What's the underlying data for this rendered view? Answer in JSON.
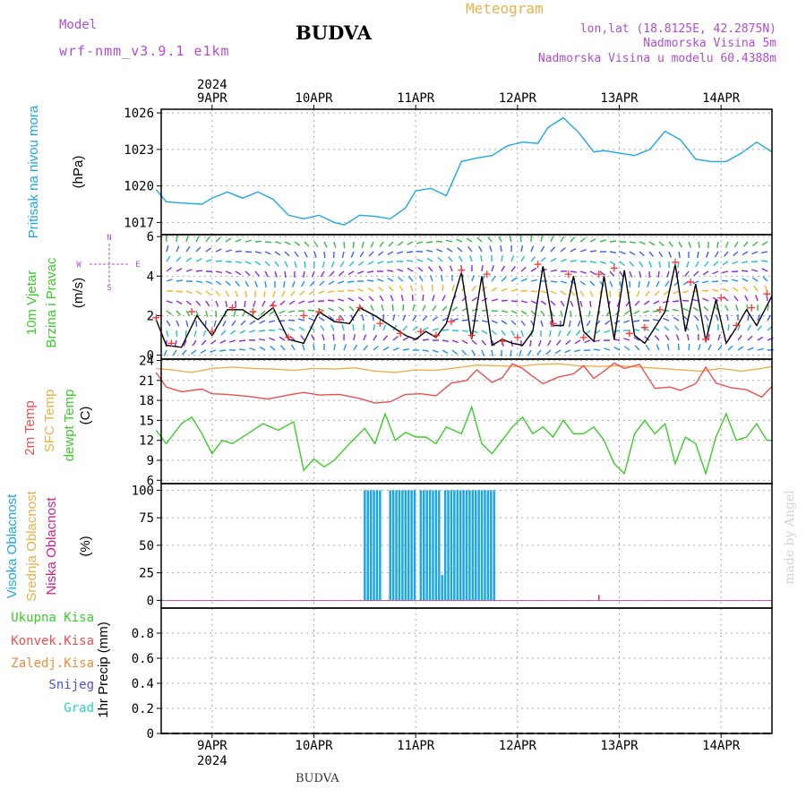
{
  "header": {
    "model_label": "Model",
    "model_name": "wrf-nmm_v3.9.1 e1km",
    "station": "BUDVA",
    "chart_title": "Meteogram",
    "location_line": "lon,lat (18.8125E, 42.2875N)",
    "altitude_line": "Nadmorska Visina 5m",
    "model_altitude_line": "Nadmorska Visina u modelu 60.4388m",
    "footer_station": "BUDVA",
    "credit": "made by Angel"
  },
  "colors": {
    "pressure": "#1ea7e6",
    "temp2m": "#e8504f",
    "sfc_temp": "#e8b14a",
    "dewpoint": "#3ccc2a",
    "high_cloud": "#1ea7e6",
    "low_cloud": "#d0208a",
    "wind_speed": "#000000",
    "gust_marker": "#ff3333",
    "title_purple": "#b04cd6",
    "precip_total": "#3ccc2a",
    "precip_conv": "#e8504f",
    "precip_frozen": "#f08a3c",
    "precip_snow": "#4f4fe0",
    "precip_graupel": "#2ad0c0"
  },
  "chart_data": {
    "type": "line",
    "x_axis": {
      "year_label": "2024",
      "ticks": [
        "9APR",
        "10APR",
        "11APR",
        "12APR",
        "13APR",
        "14APR"
      ]
    },
    "panels": [
      {
        "id": "pressure",
        "type": "line",
        "labels": [
          "Pritisak na nivou mora"
        ],
        "unit": "(hPa)",
        "ylim": [
          1016,
          1026.3
        ],
        "yticks": [
          1017,
          1020,
          1023,
          1026
        ],
        "grid": true,
        "series": [
          {
            "color_key": "pressure",
            "x": [
              8.45,
              8.55,
              8.7,
              8.9,
              9.0,
              9.15,
              9.3,
              9.45,
              9.6,
              9.75,
              9.9,
              10.05,
              10.2,
              10.3,
              10.45,
              10.6,
              10.75,
              10.9,
              11.0,
              11.15,
              11.3,
              11.45,
              11.6,
              11.75,
              11.9,
              12.05,
              12.2,
              12.3,
              12.45,
              12.6,
              12.75,
              12.85,
              13.0,
              13.15,
              13.3,
              13.45,
              13.6,
              13.75,
              13.9,
              14.05,
              14.2,
              14.35,
              14.5
            ],
            "values": [
              1019.7,
              1018.7,
              1018.6,
              1018.5,
              1019.0,
              1019.5,
              1019.0,
              1019.5,
              1018.9,
              1017.6,
              1017.3,
              1017.6,
              1017.0,
              1016.8,
              1017.6,
              1017.5,
              1017.3,
              1018.2,
              1019.6,
              1019.8,
              1019.2,
              1022.0,
              1022.3,
              1022.5,
              1023.3,
              1023.6,
              1023.5,
              1024.8,
              1025.6,
              1024.4,
              1022.8,
              1022.9,
              1022.7,
              1022.5,
              1023.0,
              1024.5,
              1023.8,
              1022.2,
              1022.0,
              1022.0,
              1022.7,
              1023.6,
              1022.8
            ]
          }
        ]
      },
      {
        "id": "wind",
        "type": "line",
        "labels": [
          "10m Vjetar",
          "Brzina i Pravac"
        ],
        "unit": "(m/s)",
        "ylim": [
          -0.2,
          6.1
        ],
        "yticks": [
          0,
          2,
          4,
          6
        ],
        "grid": true,
        "compass": [
          "N",
          "W",
          "E",
          "S"
        ],
        "series": [
          {
            "color_key": "wind_speed",
            "x": [
              8.45,
              8.55,
              8.7,
              8.85,
              9.0,
              9.15,
              9.3,
              9.45,
              9.6,
              9.75,
              9.9,
              10.05,
              10.2,
              10.35,
              10.45,
              10.6,
              10.75,
              10.9,
              11.0,
              11.1,
              11.2,
              11.3,
              11.45,
              11.55,
              11.65,
              11.75,
              11.85,
              11.95,
              12.05,
              12.15,
              12.25,
              12.35,
              12.45,
              12.55,
              12.65,
              12.75,
              12.85,
              12.95,
              13.05,
              13.15,
              13.25,
              13.35,
              13.45,
              13.55,
              13.65,
              13.75,
              13.85,
              13.95,
              14.05,
              14.15,
              14.25,
              14.35,
              14.5
            ],
            "values": [
              1.8,
              0.5,
              0.4,
              2.0,
              1.0,
              2.3,
              2.3,
              1.8,
              2.4,
              0.8,
              0.6,
              2.2,
              1.7,
              1.6,
              2.4,
              2.0,
              1.5,
              1.0,
              0.8,
              1.2,
              0.9,
              1.6,
              4.2,
              0.8,
              4.0,
              0.5,
              0.8,
              0.6,
              0.5,
              1.2,
              4.5,
              1.5,
              1.5,
              4.0,
              1.2,
              0.7,
              4.0,
              0.8,
              4.3,
              1.0,
              0.6,
              1.4,
              2.2,
              4.6,
              1.2,
              3.6,
              0.7,
              2.8,
              0.6,
              1.4,
              2.3,
              1.5,
              3.0
            ]
          },
          {
            "color_key": "gust_marker",
            "marker": "plus",
            "x": [
              8.45,
              8.6,
              8.8,
              9.0,
              9.2,
              9.4,
              9.6,
              9.75,
              9.9,
              10.05,
              10.25,
              10.45,
              10.65,
              10.85,
              11.05,
              11.2,
              11.35,
              11.45,
              11.55,
              11.7,
              11.85,
              12.0,
              12.2,
              12.35,
              12.5,
              12.65,
              12.8,
              12.95,
              13.1,
              13.25,
              13.4,
              13.55,
              13.7,
              13.85,
              14.0,
              14.15,
              14.3,
              14.45
            ],
            "values": [
              1.9,
              0.6,
              2.2,
              1.2,
              2.4,
              2.2,
              2.5,
              0.9,
              2.0,
              2.2,
              1.8,
              2.4,
              1.6,
              1.1,
              1.2,
              1.0,
              1.7,
              4.3,
              1.0,
              4.1,
              0.7,
              0.9,
              4.6,
              1.6,
              4.1,
              0.9,
              4.1,
              4.4,
              1.1,
              1.4,
              2.3,
              4.7,
              3.7,
              0.8,
              2.9,
              1.5,
              2.4,
              3.1
            ]
          }
        ]
      },
      {
        "id": "temperature",
        "type": "line",
        "labels": [
          "2m Temp",
          "SFC Temp",
          "dewpt Temp"
        ],
        "label_color_keys": [
          "temp2m",
          "sfc_temp",
          "dewpoint"
        ],
        "unit": "(C)",
        "ylim": [
          5.5,
          24.2
        ],
        "yticks": [
          6,
          9,
          12,
          15,
          18,
          21,
          24
        ],
        "grid": true,
        "series": [
          {
            "color_key": "sfc_temp",
            "x": [
              8.45,
              8.6,
              8.8,
              9.0,
              9.2,
              9.4,
              9.6,
              9.8,
              10.0,
              10.2,
              10.4,
              10.6,
              10.8,
              11.0,
              11.2,
              11.4,
              11.6,
              11.8,
              12.0,
              12.2,
              12.4,
              12.6,
              12.8,
              13.0,
              13.2,
              13.4,
              13.6,
              13.8,
              14.0,
              14.2,
              14.4,
              14.5
            ],
            "values": [
              22.8,
              22.6,
              22.2,
              22.8,
              23.0,
              22.8,
              22.7,
              22.5,
              22.8,
              22.7,
              22.9,
              22.4,
              22.2,
              22.6,
              22.5,
              22.9,
              23.3,
              23.2,
              23.1,
              23.4,
              23.5,
              23.2,
              23.1,
              23.2,
              23.0,
              22.8,
              22.6,
              22.4,
              22.8,
              22.4,
              22.8,
              23.1
            ]
          },
          {
            "color_key": "temp2m",
            "x": [
              8.45,
              8.55,
              8.7,
              8.9,
              9.0,
              9.15,
              9.35,
              9.55,
              9.75,
              9.9,
              10.05,
              10.25,
              10.45,
              10.6,
              10.75,
              10.9,
              11.05,
              11.2,
              11.35,
              11.5,
              11.6,
              11.75,
              11.85,
              11.95,
              12.05,
              12.15,
              12.25,
              12.4,
              12.55,
              12.65,
              12.75,
              12.85,
              12.95,
              13.05,
              13.2,
              13.35,
              13.5,
              13.6,
              13.75,
              13.85,
              13.95,
              14.1,
              14.25,
              14.4,
              14.5
            ],
            "values": [
              22.2,
              20.0,
              19.3,
              19.7,
              19.0,
              18.9,
              18.6,
              18.2,
              18.8,
              19.2,
              18.8,
              18.9,
              18.3,
              17.6,
              17.8,
              18.9,
              19.0,
              18.7,
              20.6,
              21.0,
              22.6,
              20.7,
              21.4,
              23.5,
              22.8,
              21.6,
              20.5,
              21.5,
              22.0,
              23.2,
              21.3,
              22.4,
              23.6,
              22.8,
              23.4,
              19.8,
              20.0,
              19.5,
              20.5,
              23.0,
              20.6,
              19.9,
              19.6,
              18.5,
              20.1
            ]
          },
          {
            "color_key": "dewpoint",
            "x": [
              8.45,
              8.55,
              8.7,
              8.8,
              8.9,
              9.0,
              9.1,
              9.2,
              9.35,
              9.5,
              9.65,
              9.8,
              9.9,
              10.0,
              10.1,
              10.2,
              10.35,
              10.5,
              10.6,
              10.7,
              10.8,
              10.9,
              11.0,
              11.1,
              11.2,
              11.3,
              11.45,
              11.55,
              11.65,
              11.75,
              11.85,
              11.95,
              12.05,
              12.15,
              12.25,
              12.35,
              12.45,
              12.55,
              12.65,
              12.75,
              12.85,
              12.95,
              13.05,
              13.15,
              13.25,
              13.35,
              13.45,
              13.55,
              13.65,
              13.75,
              13.85,
              13.95,
              14.05,
              14.15,
              14.25,
              14.35,
              14.45,
              14.5
            ],
            "values": [
              13.5,
              11.5,
              14.5,
              15.5,
              13.0,
              10.0,
              12.0,
              11.5,
              13.0,
              14.5,
              13.5,
              14.8,
              7.5,
              9.2,
              8.0,
              9.0,
              11.5,
              13.8,
              11.5,
              16.0,
              12.0,
              13.2,
              12.5,
              12.5,
              11.5,
              14.0,
              13.0,
              17.0,
              11.5,
              10.0,
              12.0,
              14.0,
              15.5,
              13.0,
              14.0,
              12.5,
              15.0,
              13.0,
              13.0,
              14.0,
              12.0,
              8.5,
              7.0,
              13.0,
              15.0,
              13.0,
              14.5,
              8.5,
              12.5,
              11.5,
              7.0,
              12.5,
              16.0,
              12.0,
              12.5,
              14.5,
              12.0,
              12.0
            ]
          }
        ]
      },
      {
        "id": "clouds",
        "type": "bar",
        "labels": [
          "Visoka Oblacnost",
          "Srednja Oblacnost",
          "Niska Oblacnost"
        ],
        "label_color_keys": [
          "high_cloud",
          "sfc_temp",
          "low_cloud"
        ],
        "unit": "(%)",
        "ylim": [
          -7,
          106
        ],
        "yticks": [
          0,
          25,
          50,
          75,
          100
        ],
        "grid": true,
        "series": [
          {
            "name": "Visoka Oblacnost",
            "color_key": "high_cloud",
            "bar_width": 0.022,
            "x": [
              10.5,
              10.53,
              10.56,
              10.59,
              10.62,
              10.65,
              10.75,
              10.78,
              10.81,
              10.84,
              10.87,
              10.9,
              10.93,
              10.96,
              10.99,
              11.05,
              11.08,
              11.11,
              11.14,
              11.17,
              11.2,
              11.23,
              11.26,
              11.29,
              11.32,
              11.35,
              11.38,
              11.41,
              11.44,
              11.47,
              11.5,
              11.53,
              11.56,
              11.59,
              11.62,
              11.65,
              11.68,
              11.71,
              11.74,
              11.77
            ],
            "values": [
              100,
              100,
              100,
              100,
              100,
              100,
              100,
              100,
              100,
              100,
              100,
              100,
              100,
              100,
              100,
              100,
              100,
              100,
              100,
              100,
              100,
              100,
              23,
              100,
              100,
              100,
              100,
              100,
              100,
              100,
              100,
              100,
              100,
              100,
              100,
              100,
              100,
              100,
              100,
              100
            ]
          },
          {
            "name": "Niska Oblacnost",
            "color_key": "low_cloud",
            "bar_width": 0.012,
            "x": [
              12.8
            ],
            "values": [
              5
            ]
          }
        ]
      },
      {
        "id": "precip",
        "type": "line",
        "labels": [
          "Ukupna Kisa",
          "Konvek.Kisa",
          "Zaledj.Kisa",
          "Snijeg",
          "Grad"
        ],
        "label_color_keys": [
          "precip_total",
          "precip_conv",
          "precip_frozen",
          "precip_snow",
          "precip_graupel"
        ],
        "axis_label": "1hr Precip (mm)",
        "ylim": [
          0,
          1.0
        ],
        "yticks": [
          0,
          0.2,
          0.4,
          0.6,
          0.8
        ],
        "grid": true,
        "series": []
      }
    ]
  }
}
